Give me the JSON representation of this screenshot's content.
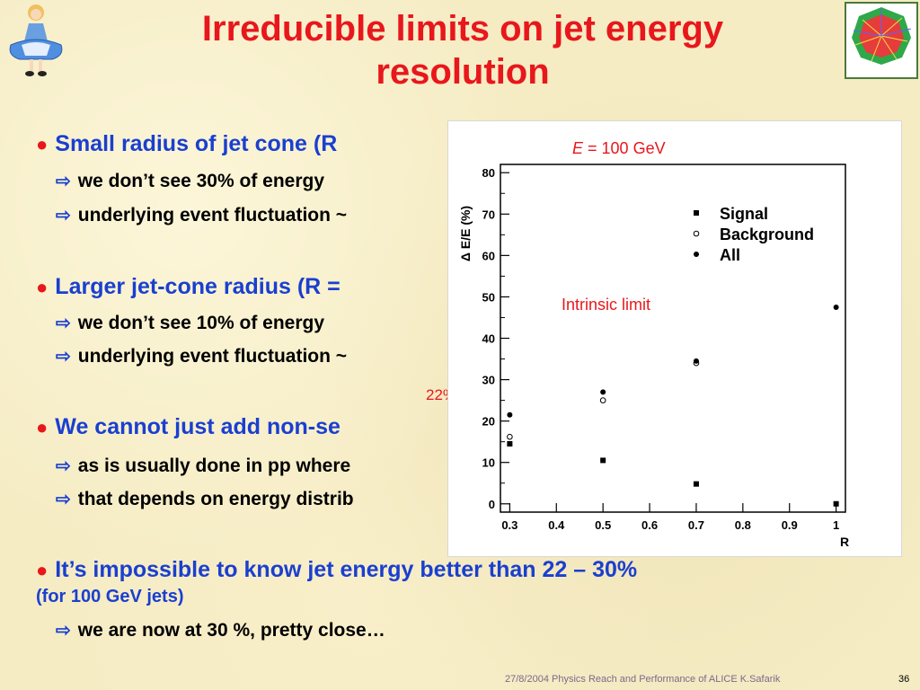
{
  "slide": {
    "title_line1": "Irreducible limits on jet energy",
    "title_line2": "resolution",
    "bullets": [
      {
        "text": "Small radius of jet cone (R"
      },
      {
        "text": "Larger jet-cone radius (R ="
      },
      {
        "text": "We cannot just add non-se"
      },
      {
        "text": "It’s impossible to know jet energy better than 22 – 30%"
      }
    ],
    "subs": [
      "we don’t see 30% of energy",
      "underlying event fluctuation ~",
      "we don’t see 10% of energy",
      "underlying event fluctuation ~",
      "as is usually done in pp where",
      "that depends on energy distrib",
      "we are now at 30 %, pretty close…"
    ],
    "note_100gev": "(for 100 GeV jets)",
    "label_22": "22%",
    "footer": "27/8/2004 Physics Reach and Performance of ALICE  K.Safarik",
    "page_number": "36",
    "colors": {
      "title": "#e8171c",
      "bullet_text": "#1a3fd0",
      "background": "#f5ecc4"
    }
  },
  "chart_data": {
    "type": "scatter",
    "title": "",
    "energy_label_var": "E",
    "energy_label_rest": " = 100 GeV",
    "annotation": "Intrinsic limit",
    "xlabel": "R",
    "ylabel": "Δ E/E (%)",
    "xlim": [
      0.28,
      1.02
    ],
    "ylim": [
      -2,
      82
    ],
    "xticks": [
      "0.3",
      "0.4",
      "0.5",
      "0.6",
      "0.7",
      "0.8",
      "0.9",
      "1"
    ],
    "yticks": [
      "0",
      "10",
      "20",
      "30",
      "40",
      "50",
      "60",
      "70",
      "80"
    ],
    "x": [
      0.3,
      0.5,
      0.7,
      1.0
    ],
    "series": [
      {
        "name": "Signal",
        "marker": "square",
        "values": [
          14.5,
          10.5,
          4.8,
          0
        ]
      },
      {
        "name": "Background",
        "marker": "open-circle",
        "values": [
          16.2,
          25,
          34,
          null
        ]
      },
      {
        "name": "All",
        "marker": "dot",
        "values": [
          21.5,
          27,
          34.5,
          47.5
        ]
      }
    ],
    "legend_position": "top-right",
    "grid": false
  }
}
